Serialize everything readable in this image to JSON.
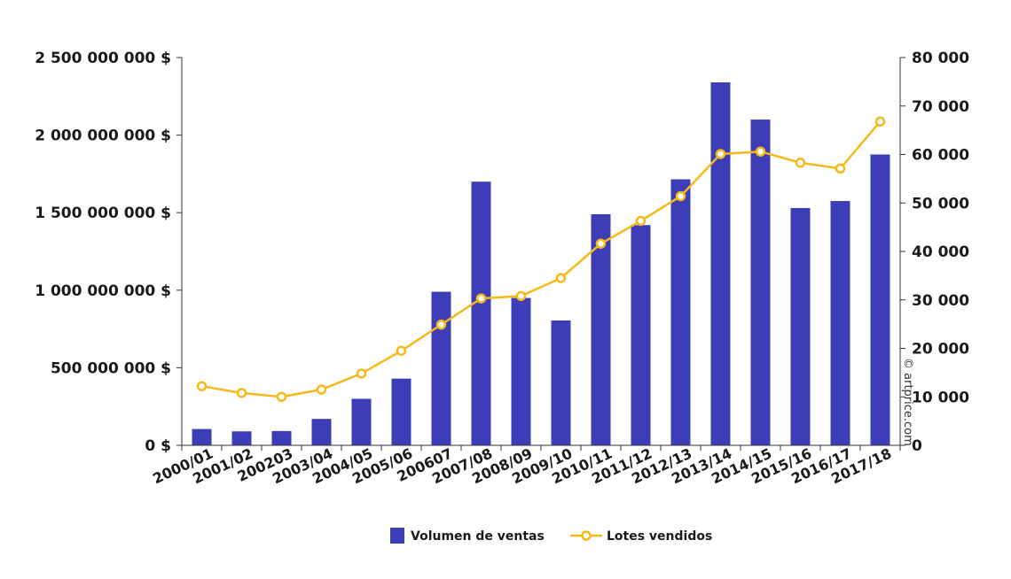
{
  "chart_data": {
    "type": "bar",
    "categories": [
      "2000/01",
      "2001/02",
      "200203",
      "2003/04",
      "2004/05",
      "2005/06",
      "200607",
      "2007/08",
      "2008/09",
      "2009/10",
      "2010/11",
      "2011/12",
      "2012/13",
      "2013/14",
      "2014/15",
      "2015/16",
      "2016/17",
      "2017/18"
    ],
    "series": [
      {
        "name": "Volumen de ventas",
        "type": "bar",
        "axis": "left",
        "color": "#3d3db8",
        "values": [
          105000000,
          90000000,
          92000000,
          170000000,
          300000000,
          430000000,
          990000000,
          1700000000,
          950000000,
          805000000,
          1490000000,
          1420000000,
          1715000000,
          2340000000,
          2100000000,
          1530000000,
          1575000000,
          1875000000
        ]
      },
      {
        "name": "Lotes vendidos",
        "type": "line",
        "axis": "right",
        "color": "#f5b91a",
        "values": [
          12200,
          10800,
          10000,
          11500,
          14800,
          19500,
          24900,
          30300,
          30800,
          34500,
          41600,
          46300,
          51400,
          60100,
          60600,
          58300,
          57100,
          66800
        ]
      }
    ],
    "y_left": {
      "ylim": [
        0,
        2500000000
      ],
      "ticks": [
        0,
        500000000,
        1000000000,
        1500000000,
        2000000000,
        2500000000
      ],
      "tick_labels": [
        "0 $",
        "500 000 000 $",
        "1 000 000 000 $",
        "1 500 000 000 $",
        "2 000 000 000 $",
        "2 500 000 000 $"
      ]
    },
    "y_right": {
      "ylim": [
        0,
        80000
      ],
      "ticks": [
        0,
        10000,
        20000,
        30000,
        40000,
        50000,
        60000,
        70000,
        80000
      ],
      "tick_labels": [
        "0",
        "10 000",
        "20 000",
        "30 000",
        "40 000",
        "50 000",
        "60 000",
        "70 000",
        "80 000"
      ]
    },
    "legend": {
      "placement": "bottom-center",
      "entries": [
        "Volumen de ventas",
        "Lotes vendidos"
      ]
    },
    "credit": "© artprice.com",
    "grid": false
  }
}
